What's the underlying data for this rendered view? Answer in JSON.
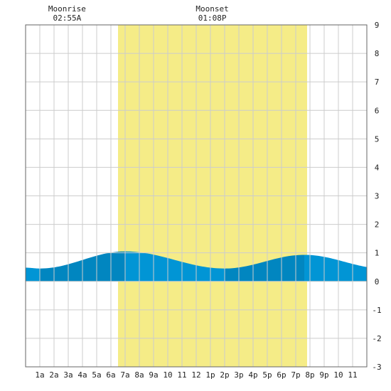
{
  "chart_data": {
    "type": "area",
    "title": "",
    "xlabel": "",
    "ylabel": "",
    "xlim": [
      0,
      24
    ],
    "ylim": [
      -3,
      9
    ],
    "grid": true,
    "yticks": [
      -3,
      -2,
      -1,
      0,
      1,
      2,
      3,
      4,
      5,
      6,
      7,
      8,
      9
    ],
    "xticks": [
      {
        "hour": 1,
        "label": "1a"
      },
      {
        "hour": 2,
        "label": "2a"
      },
      {
        "hour": 3,
        "label": "3a"
      },
      {
        "hour": 4,
        "label": "4a"
      },
      {
        "hour": 5,
        "label": "5a"
      },
      {
        "hour": 6,
        "label": "6a"
      },
      {
        "hour": 7,
        "label": "7a"
      },
      {
        "hour": 8,
        "label": "8a"
      },
      {
        "hour": 9,
        "label": "9a"
      },
      {
        "hour": 10,
        "label": "10"
      },
      {
        "hour": 11,
        "label": "11"
      },
      {
        "hour": 12,
        "label": "12"
      },
      {
        "hour": 13,
        "label": "1p"
      },
      {
        "hour": 14,
        "label": "2p"
      },
      {
        "hour": 15,
        "label": "3p"
      },
      {
        "hour": 16,
        "label": "4p"
      },
      {
        "hour": 17,
        "label": "5p"
      },
      {
        "hour": 18,
        "label": "6p"
      },
      {
        "hour": 19,
        "label": "7p"
      },
      {
        "hour": 20,
        "label": "8p"
      },
      {
        "hour": 21,
        "label": "9p"
      },
      {
        "hour": 22,
        "label": "10"
      },
      {
        "hour": 23,
        "label": "11"
      }
    ],
    "daylight": {
      "start": 6.5,
      "end": 19.8
    },
    "tide_extremes": [
      {
        "hour": 1.0,
        "height": 0.45
      },
      {
        "hour": 7.0,
        "height": 1.05
      },
      {
        "hour": 14.0,
        "height": 0.45
      },
      {
        "hour": 19.6,
        "height": 0.93
      }
    ],
    "tide_bounds": [
      {
        "hour": 0,
        "height": 0.48
      },
      {
        "hour": 24,
        "height": 0.57
      }
    ],
    "moon_events": [
      {
        "label": "Moonrise",
        "time": "02:55A",
        "hour": 2.92
      },
      {
        "label": "Moonset",
        "time": "01:08P",
        "hour": 13.13
      }
    ],
    "colors": {
      "background": "#ffffff",
      "grid": "#cccccc",
      "daylight": "#f5ec87",
      "tide_rising": "#0186c0",
      "tide_falling": "#0195d5",
      "border": "#666666"
    }
  }
}
